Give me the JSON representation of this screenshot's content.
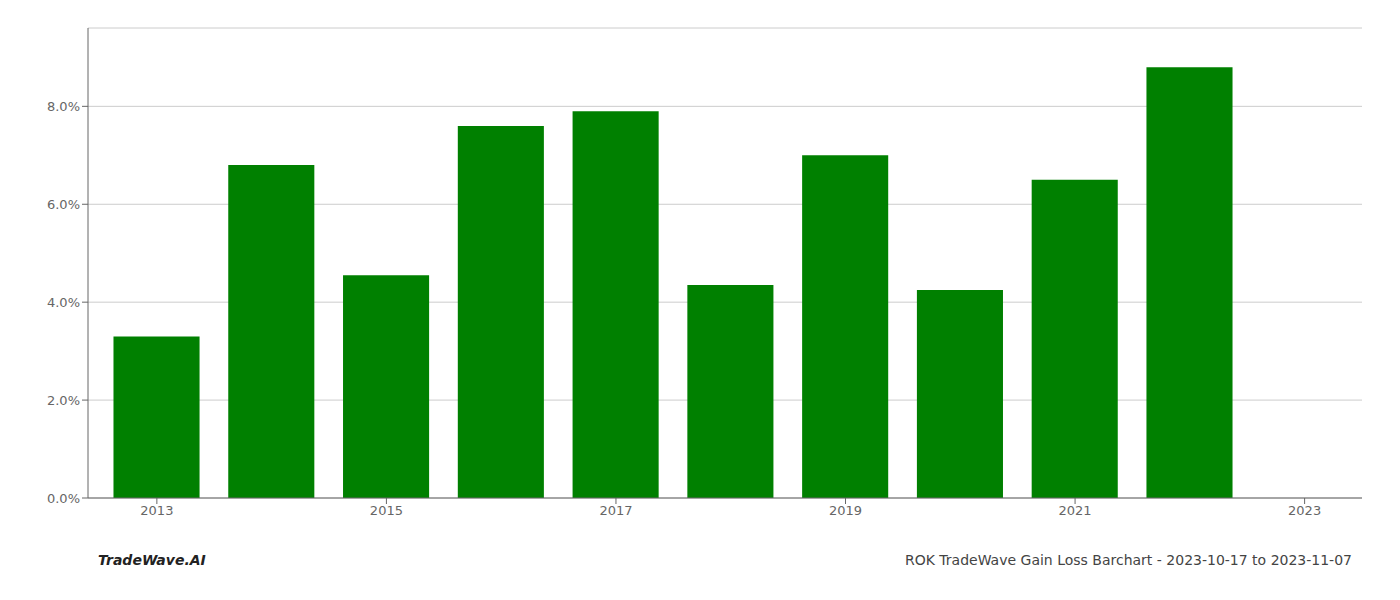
{
  "chart_data": {
    "type": "bar",
    "x": [
      2013,
      2014,
      2015,
      2016,
      2017,
      2018,
      2019,
      2020,
      2021,
      2022
    ],
    "values": [
      0.033,
      0.068,
      0.0455,
      0.076,
      0.079,
      0.0435,
      0.07,
      0.0425,
      0.065,
      0.088
    ],
    "color": "#008000",
    "xlim": [
      2012.4,
      2023.5
    ],
    "xticks": [
      2013,
      2015,
      2017,
      2019,
      2021,
      2023
    ],
    "ylim": [
      0.0,
      0.096
    ],
    "yticks": [
      {
        "value": 0.0,
        "label": "0.0%"
      },
      {
        "value": 0.02,
        "label": "2.0%"
      },
      {
        "value": 0.04,
        "label": "4.0%"
      },
      {
        "value": 0.06,
        "label": "6.0%"
      },
      {
        "value": 0.08,
        "label": "8.0%"
      }
    ],
    "grid": true,
    "annotations": [
      "TradeWave.AI",
      "ROK TradeWave Gain Loss Barchart - 2023-10-17 to 2023-11-07"
    ]
  }
}
